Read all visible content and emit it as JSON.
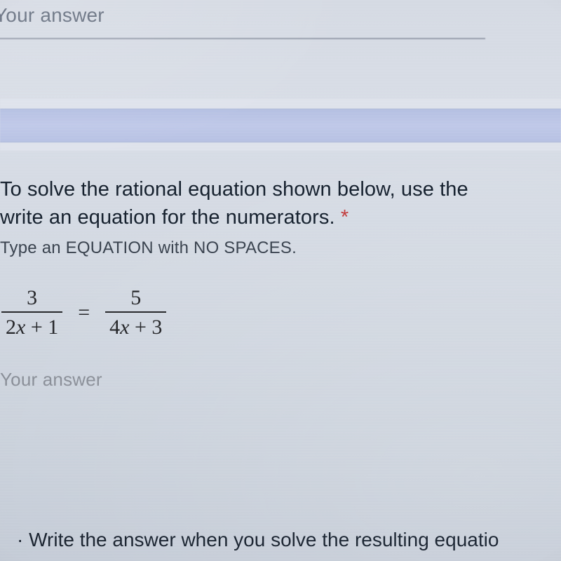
{
  "colors": {
    "page_bg_top": "#d6dbe4",
    "page_bg_bottom": "#c5ccd7",
    "band_bg": "#b8c2e4",
    "text_primary": "#16212e",
    "text_muted": "#3a434f",
    "placeholder": "#8a8f98",
    "underline": "#9aa2af",
    "required": "#c23b3b",
    "math": "#26272a"
  },
  "prev_question": {
    "answer_placeholder": "Your answer",
    "input_value": ""
  },
  "question": {
    "title_line1": "To solve the rational equation shown below, use the",
    "title_line2": "write an equation for the numerators.",
    "required_mark": "*",
    "hint": "Type an EQUATION with NO SPACES.",
    "equation": {
      "left": {
        "num": "3",
        "den_a": "2",
        "den_var": "x",
        "den_b": "+ 1"
      },
      "equals": "=",
      "right": {
        "num": "5",
        "den_a": "4",
        "den_var": "x",
        "den_b": "+ 3"
      }
    },
    "answer_placeholder": "Your answer",
    "input_value": ""
  },
  "next_question": {
    "prefix_dot": "·",
    "text": "Write the answer when you solve the resulting equatio"
  }
}
